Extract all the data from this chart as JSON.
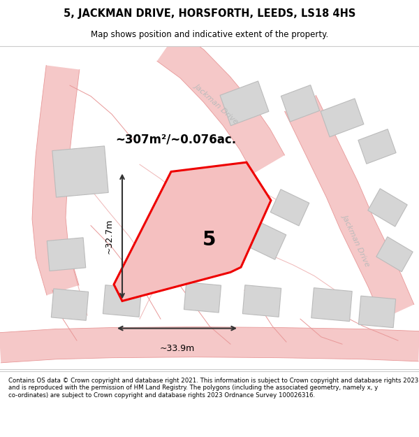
{
  "title": "5, JACKMAN DRIVE, HORSFORTH, LEEDS, LS18 4HS",
  "subtitle": "Map shows position and indicative extent of the property.",
  "footer": "Contains OS data © Crown copyright and database right 2021. This information is subject to Crown copyright and database rights 2023 and is reproduced with the permission of HM Land Registry. The polygons (including the associated geometry, namely x, y co-ordinates) are subject to Crown copyright and database rights 2023 Ordnance Survey 100026316.",
  "map_bg": "#f2f2f2",
  "road_color": "#f5c8c8",
  "road_edge_color": "#e89898",
  "building_fill": "#d5d5d5",
  "building_edge": "#bbbbbb",
  "property_fill": "#f5c0c0",
  "property_edge": "#ee0000",
  "dim_color": "#333333",
  "street_label_color": "#bbbbbb",
  "area_label": "~307m²/~0.076ac.",
  "number_label": "5",
  "dim_width": "~33.9m",
  "dim_height": "~32.7m"
}
